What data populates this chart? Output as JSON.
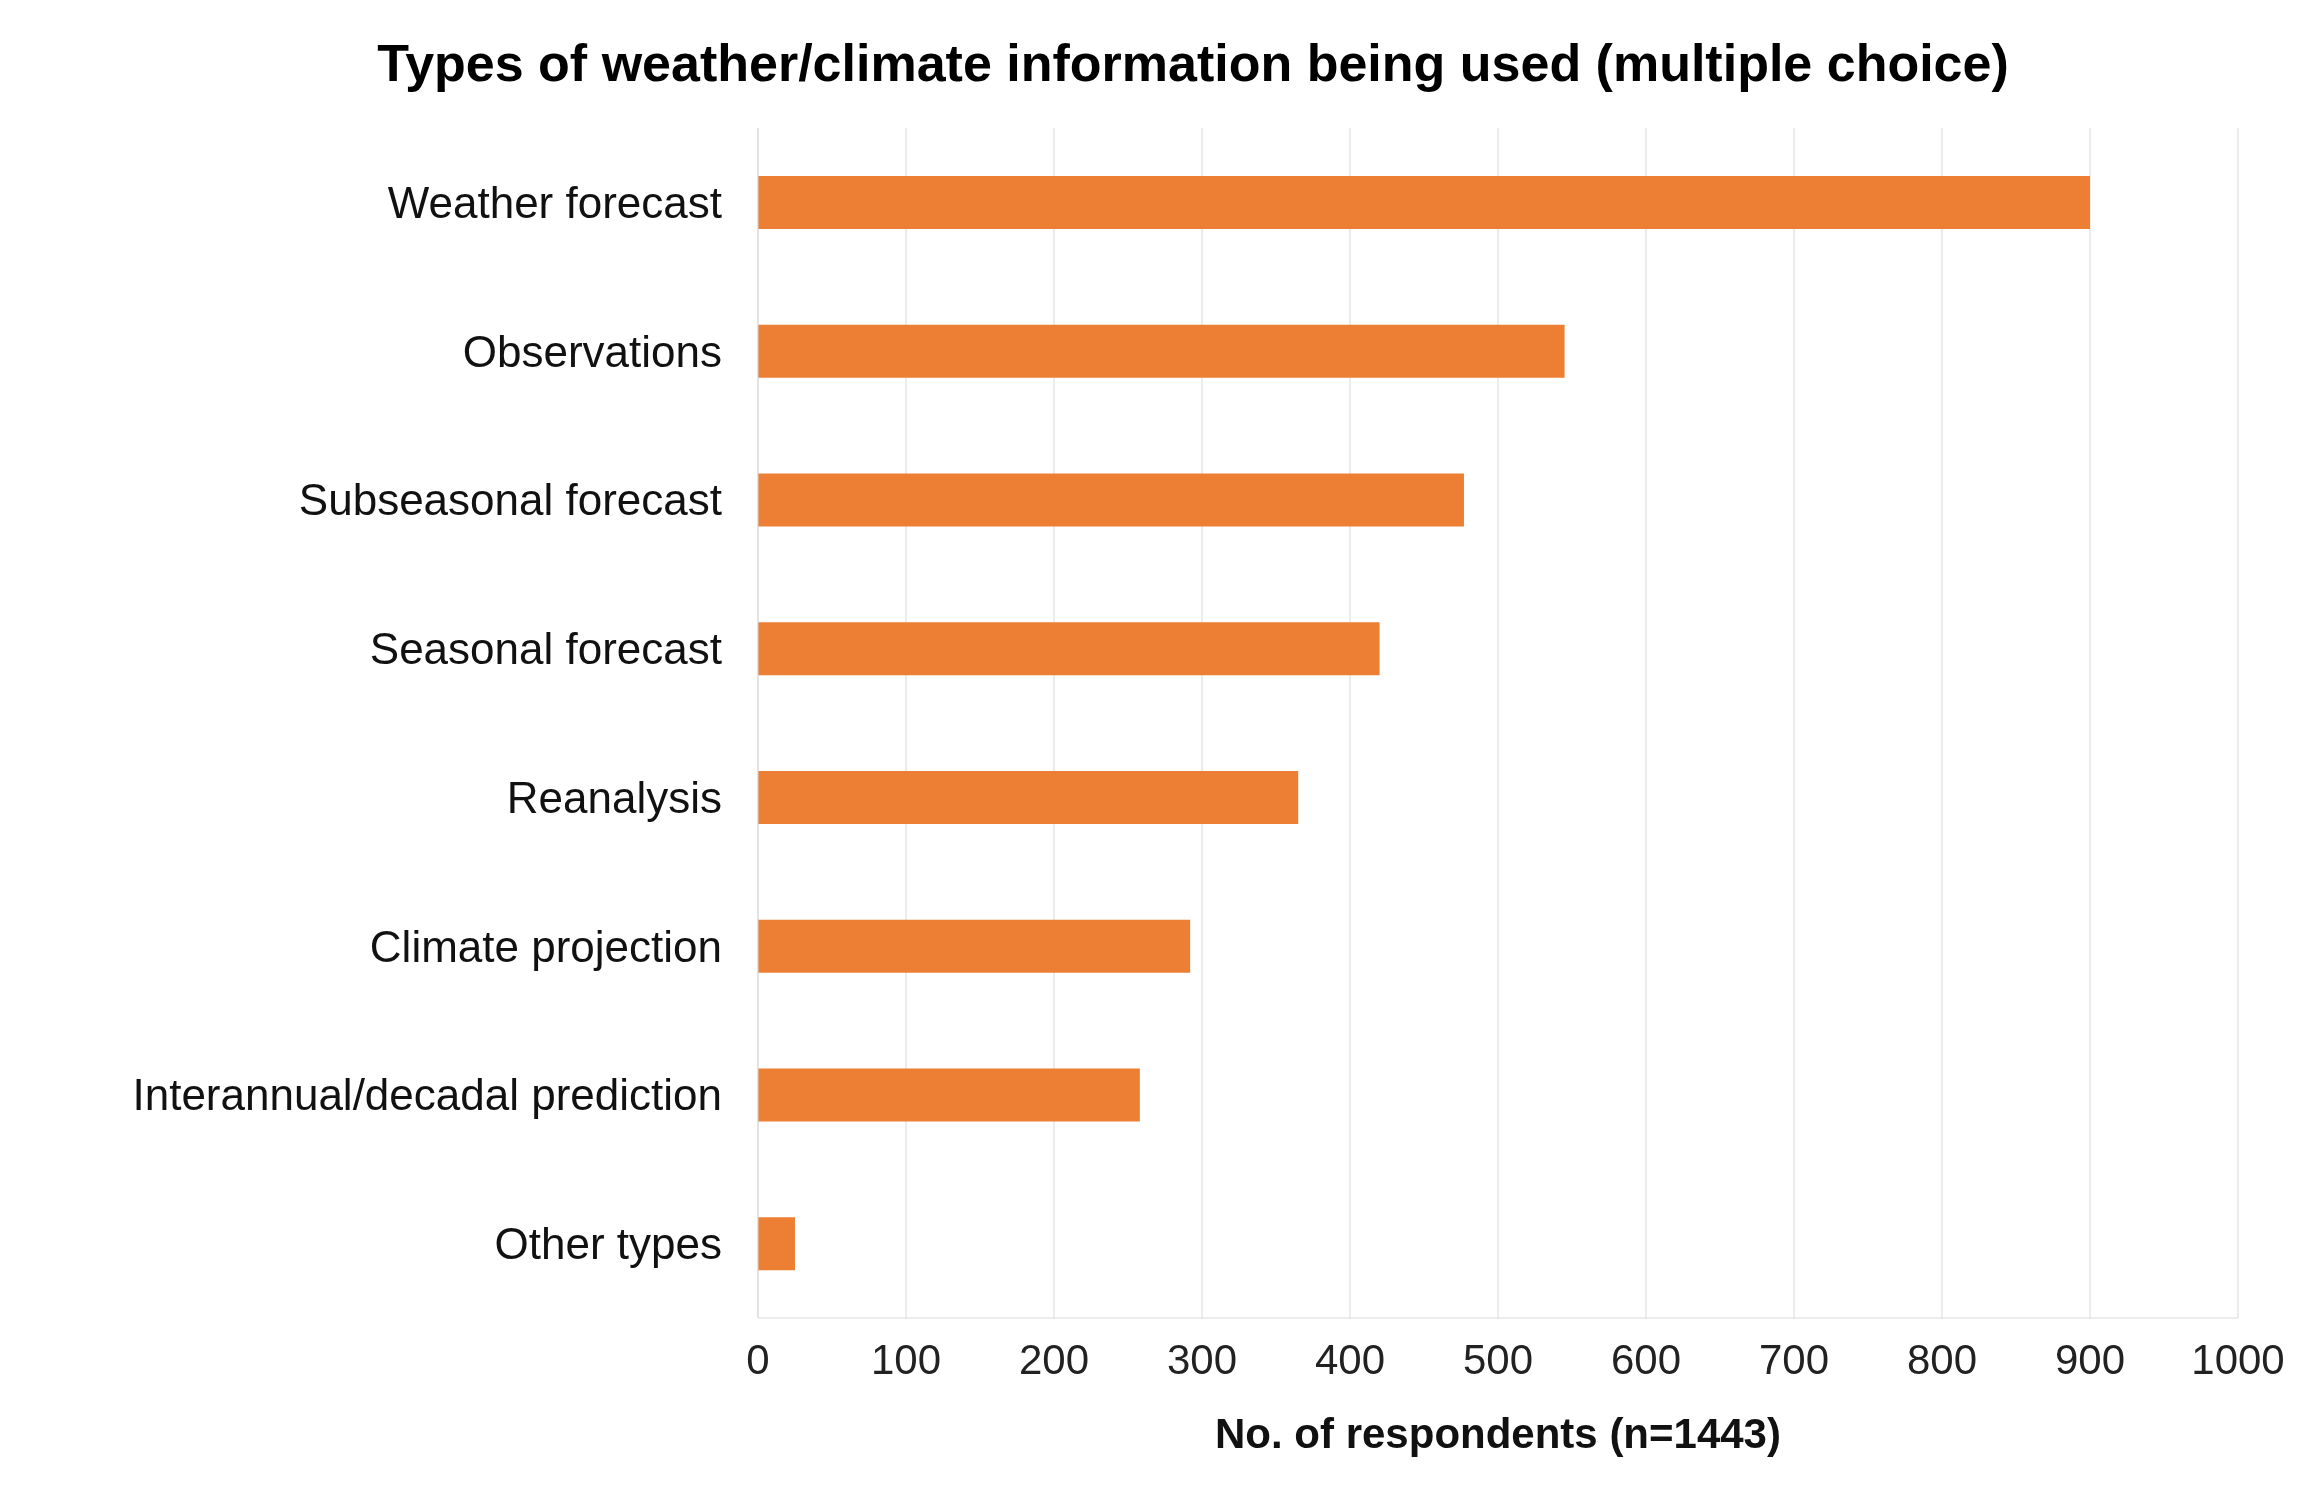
{
  "chart_data": {
    "type": "bar",
    "orientation": "horizontal",
    "title": "Types of weather/climate information being used (multiple choice)",
    "xlabel": "No. of respondents (n=1443)",
    "categories": [
      "Weather forecast",
      "Observations",
      "Subseasonal forecast",
      "Seasonal forecast",
      "Reanalysis",
      "Climate projection",
      "Interannual/decadal prediction",
      "Other types"
    ],
    "values": [
      900,
      545,
      477,
      420,
      365,
      292,
      258,
      25
    ],
    "color": "#ec7f34",
    "xlim": [
      0,
      1000
    ],
    "xticks": [
      0,
      100,
      200,
      300,
      400,
      500,
      600,
      700,
      800,
      900,
      1000
    ],
    "grid": "x"
  }
}
